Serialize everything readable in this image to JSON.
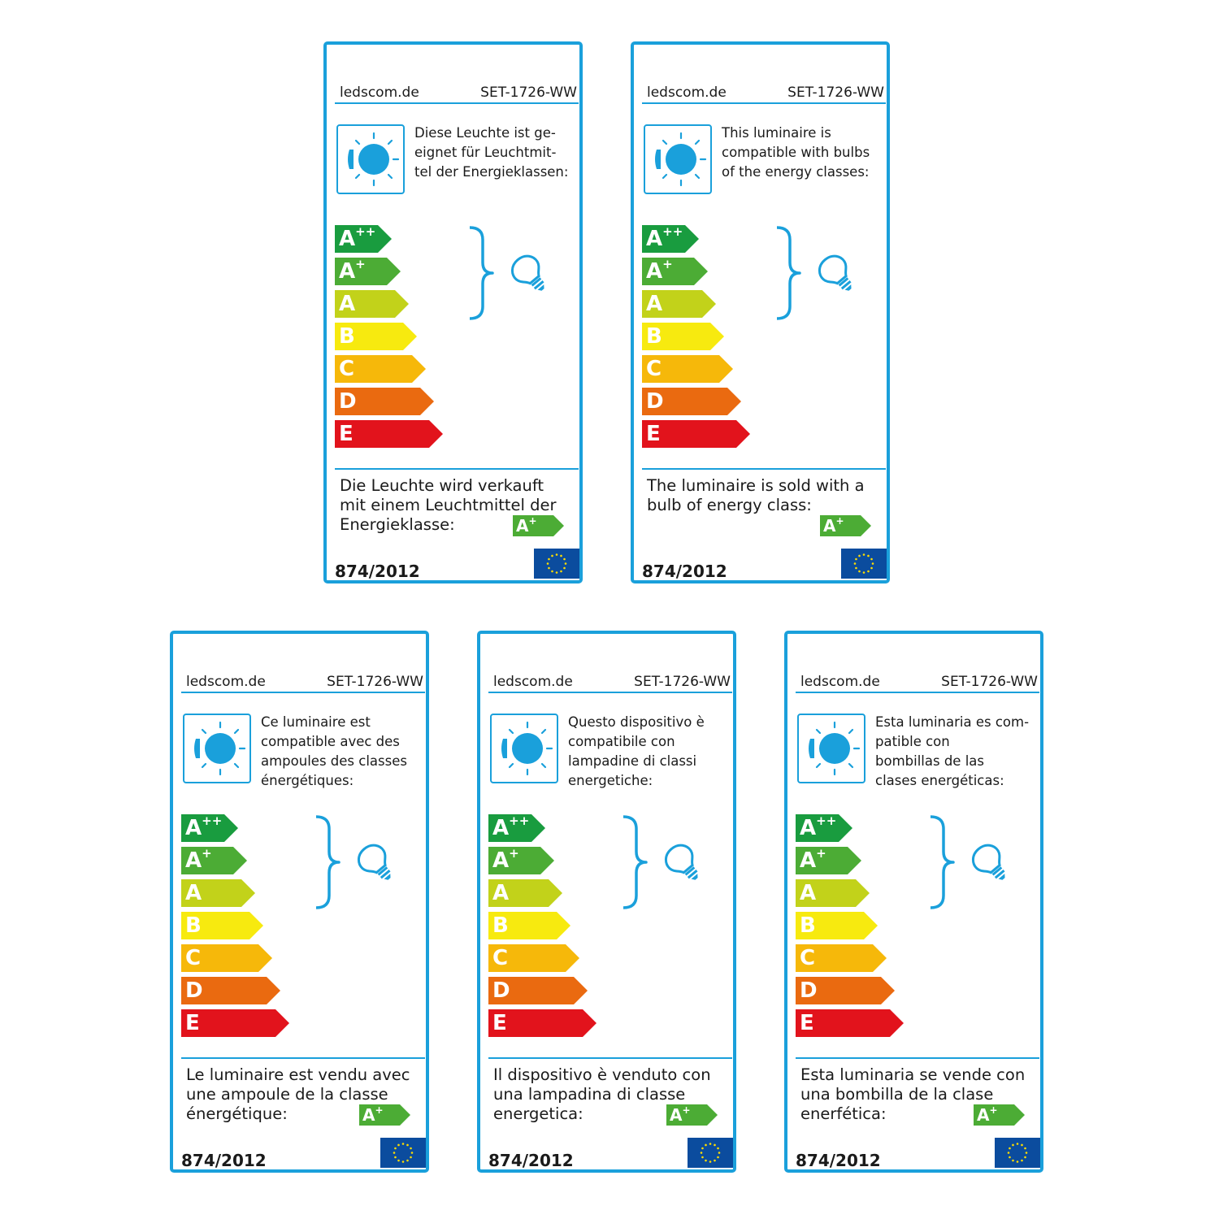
{
  "colors": {
    "frame": "#1aa0db",
    "A++": "#199c3f",
    "A+": "#4cac35",
    "A": "#c2d21a",
    "B": "#f7ea0f",
    "C": "#f6b80a",
    "D": "#ea6a10",
    "E": "#e2131c",
    "eu_flag": "#0b4c9e",
    "eu_stars": "#ffdd00"
  },
  "icons": [
    "lamp-sun-icon",
    "curly-brace",
    "light-bulb-icon",
    "eu-flag-icon"
  ],
  "energy_classes": [
    {
      "letter": "A",
      "sup": "++"
    },
    {
      "letter": "A",
      "sup": "+"
    },
    {
      "letter": "A",
      "sup": ""
    },
    {
      "letter": "B",
      "sup": ""
    },
    {
      "letter": "C",
      "sup": ""
    },
    {
      "letter": "D",
      "sup": ""
    },
    {
      "letter": "E",
      "sup": ""
    }
  ],
  "compatible_range": [
    "A++",
    "A+",
    "A"
  ],
  "sold_class": {
    "letter": "A",
    "sup": "+"
  },
  "labels": [
    {
      "language": "de",
      "site": "ledscom.de",
      "model": "SET-1726-WW",
      "compat_lines": [
        "Diese Leuchte ist ge-",
        "eignet für Leuchtmit-",
        "tel der Energieklassen:"
      ],
      "sold_lines": [
        "Die Leuchte wird verkauft",
        "mit einem Leuchtmittel der",
        "Energieklasse:"
      ],
      "regulation": "874/2012"
    },
    {
      "language": "en",
      "site": "ledscom.de",
      "model": "SET-1726-WW",
      "compat_lines": [
        "This luminaire is",
        "compatible with bulbs",
        "of the energy classes:"
      ],
      "sold_lines": [
        "The luminaire is sold with a",
        "bulb of energy class:"
      ],
      "regulation": "874/2012"
    },
    {
      "language": "fr",
      "site": "ledscom.de",
      "model": "SET-1726-WW",
      "compat_lines": [
        "Ce luminaire est",
        "compatible avec des",
        "ampoules des classes",
        "énergétiques:"
      ],
      "sold_lines": [
        "Le luminaire est vendu avec",
        "une ampoule de la classe",
        "énergétique:"
      ],
      "regulation": "874/2012"
    },
    {
      "language": "it",
      "site": "ledscom.de",
      "model": "SET-1726-WW",
      "compat_lines": [
        "Questo dispositivo è",
        "compatibile con",
        "lampadine di classi",
        "energetiche:"
      ],
      "sold_lines": [
        "Il dispositivo è venduto con",
        "una lampadina di classe",
        "energetica:"
      ],
      "regulation": "874/2012"
    },
    {
      "language": "es",
      "site": "ledscom.de",
      "model": "SET-1726-WW",
      "compat_lines": [
        "Esta luminaria es com-",
        "patible con",
        "bombillas de las",
        "clases energéticas:"
      ],
      "sold_lines": [
        "Esta luminaria se vende con",
        "una bombilla de la clase",
        "enerfética:"
      ],
      "regulation": "874/2012"
    }
  ]
}
